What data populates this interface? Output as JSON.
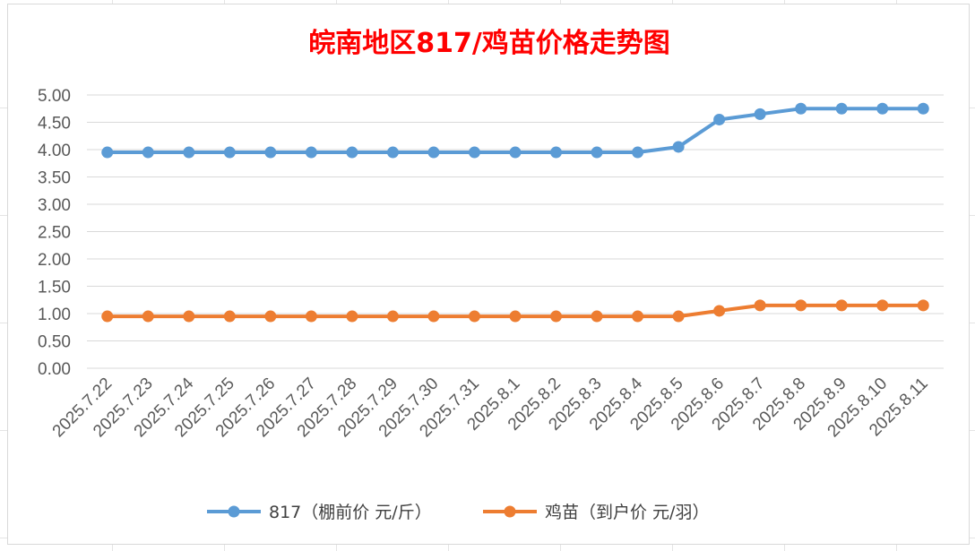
{
  "colors": {
    "title": "#ff0000",
    "series_817": "#5b9bd5",
    "series_chick": "#ed7d31",
    "grid": "#d9d9d9",
    "axis_text": "#595959"
  },
  "chart_data": {
    "type": "line",
    "title": "皖南地区817/鸡苗价格走势图",
    "xlabel": "",
    "ylabel": "",
    "ylim": [
      0,
      5
    ],
    "yticks": [
      "0.00",
      "0.50",
      "1.00",
      "1.50",
      "2.00",
      "2.50",
      "3.00",
      "3.50",
      "4.00",
      "4.50",
      "5.00"
    ],
    "ytick_values": [
      0,
      0.5,
      1,
      1.5,
      2,
      2.5,
      3,
      3.5,
      4,
      4.5,
      5
    ],
    "categories": [
      "2025.7.22",
      "2025.7.23",
      "2025.7.24",
      "2025.7.25",
      "2025.7.26",
      "2025.7.27",
      "2025.7.28",
      "2025.7.29",
      "2025.7.30",
      "2025.7.31",
      "2025.8.1",
      "2025.8.2",
      "2025.8.3",
      "2025.8.4",
      "2025.8.5",
      "2025.8.6",
      "2025.8.7",
      "2025.8.8",
      "2025.8.9",
      "2025.8.10",
      "2025.8.11"
    ],
    "series": [
      {
        "name": "817（棚前价 元/斤）",
        "color": "#5b9bd5",
        "values": [
          3.95,
          3.95,
          3.95,
          3.95,
          3.95,
          3.95,
          3.95,
          3.95,
          3.95,
          3.95,
          3.95,
          3.95,
          3.95,
          3.95,
          4.05,
          4.55,
          4.65,
          4.75,
          4.75,
          4.75,
          4.75
        ]
      },
      {
        "name": "鸡苗（到户价 元/羽）",
        "color": "#ed7d31",
        "values": [
          0.95,
          0.95,
          0.95,
          0.95,
          0.95,
          0.95,
          0.95,
          0.95,
          0.95,
          0.95,
          0.95,
          0.95,
          0.95,
          0.95,
          0.95,
          1.05,
          1.15,
          1.15,
          1.15,
          1.15,
          1.15
        ]
      }
    ],
    "grid": true,
    "legend": "bottom"
  }
}
